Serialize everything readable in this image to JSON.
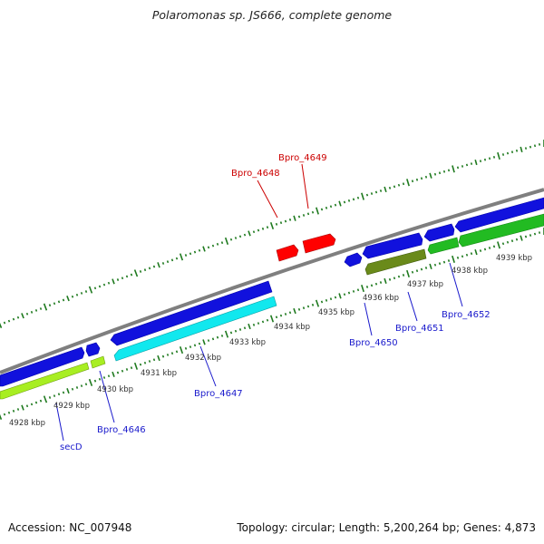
{
  "title": "Polaromonas sp. JS666, complete genome",
  "accession": "Accession: NC_007948",
  "summary": "Topology: circular; Length: 5,200,264 bp; Genes: 4,873",
  "colors": {
    "backbone": "#7f7f7f",
    "tick": "#1f7a1f",
    "cds_forward": "#1111dd",
    "cds_reverse": "#00b000",
    "highlight_red": "#ff0000",
    "highlight_cyan": "#11e8ee",
    "highlight_lime": "#a8ee22",
    "highlight_olive": "#6a8a1a",
    "label_blue": "#1a1acc",
    "label_red": "#cc0000"
  },
  "tick_labels": [
    {
      "text": "4928 kbp"
    },
    {
      "text": "4929 kbp"
    },
    {
      "text": "4930 kbp"
    },
    {
      "text": "4931 kbp"
    },
    {
      "text": "4932 kbp"
    },
    {
      "text": "4933 kbp"
    },
    {
      "text": "4934 kbp"
    },
    {
      "text": "4935 kbp"
    },
    {
      "text": "4936 kbp"
    },
    {
      "text": "4937 kbp"
    },
    {
      "text": "4938 kbp"
    },
    {
      "text": "4939 kbp"
    }
  ],
  "gene_labels": [
    {
      "text": "secD",
      "color": "label_blue"
    },
    {
      "text": "Bpro_4646",
      "color": "label_blue"
    },
    {
      "text": "Bpro_4647",
      "color": "label_blue"
    },
    {
      "text": "Bpro_4648",
      "color": "label_red"
    },
    {
      "text": "Bpro_4649",
      "color": "label_red"
    },
    {
      "text": "Bpro_4650",
      "color": "label_blue"
    },
    {
      "text": "Bpro_4651",
      "color": "label_blue"
    },
    {
      "text": "Bpro_4652",
      "color": "label_blue"
    }
  ]
}
